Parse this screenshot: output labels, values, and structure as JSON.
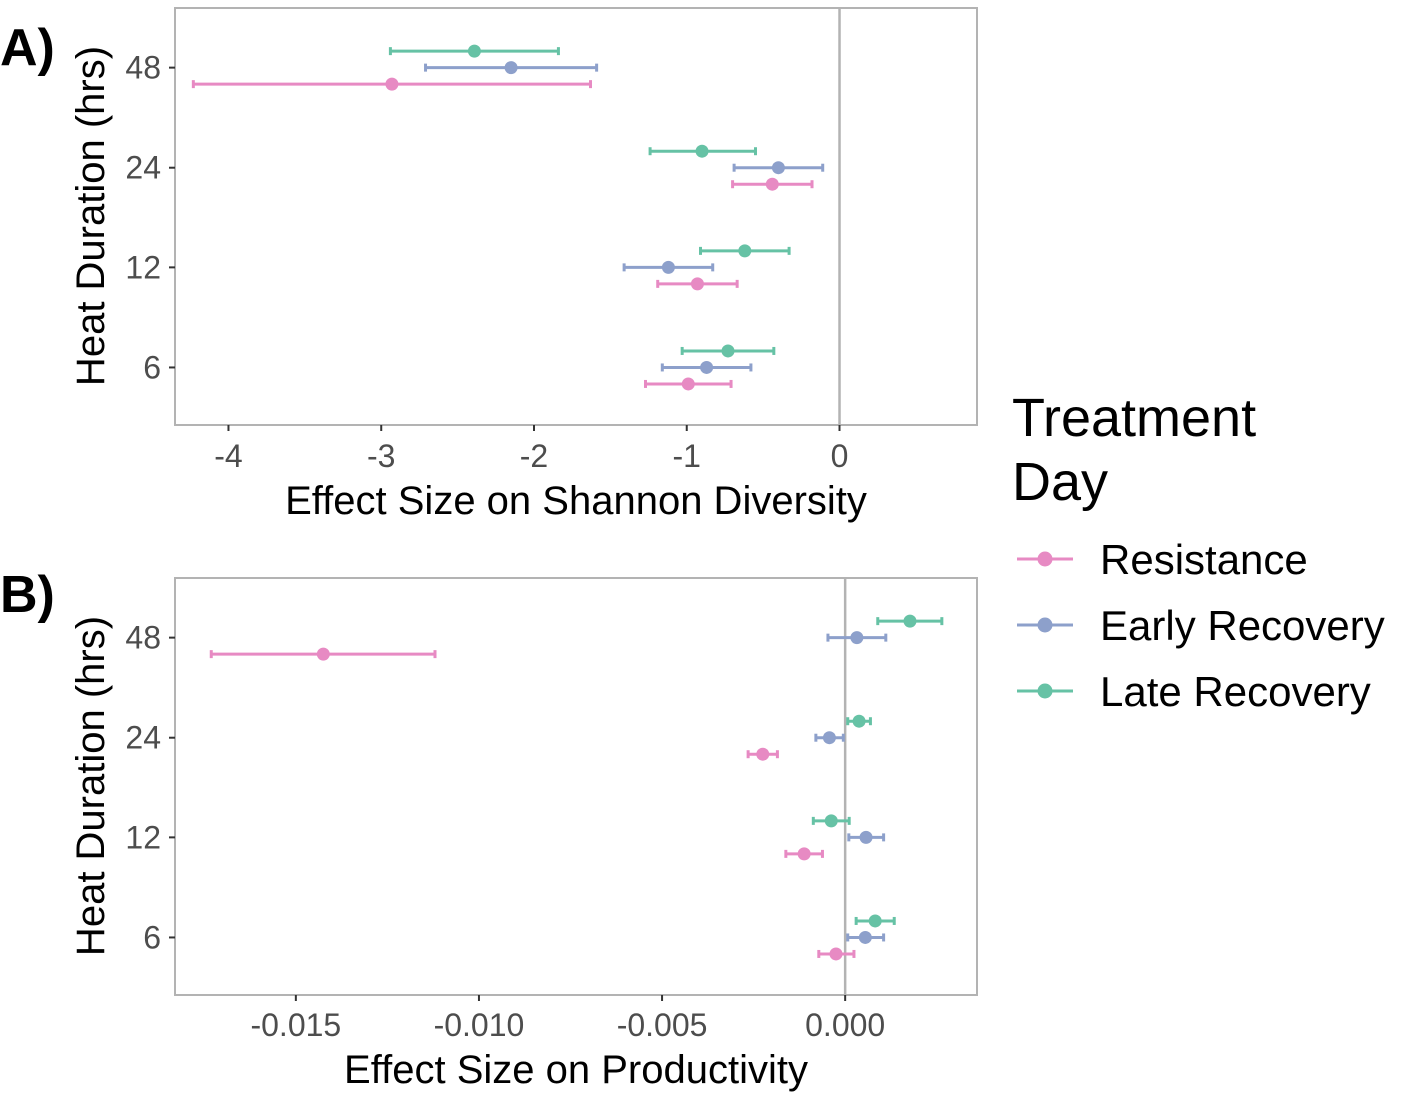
{
  "colors": {
    "Resistance": "#e78ac3",
    "Early Recovery": "#8da0cb",
    "Late Recovery": "#66c2a5"
  },
  "legend": {
    "title_line1": "Treatment",
    "title_line2": "Day",
    "items": [
      "Resistance",
      "Early Recovery",
      "Late Recovery"
    ]
  },
  "chart_data": [
    {
      "panel": "A)",
      "type": "scatter",
      "xlabel": "Effect Size on Shannon Diversity",
      "ylabel": "Heat Duration (hrs)",
      "xlim": [
        -4.35,
        0.9
      ],
      "x_ticks": [
        -4,
        -3,
        -2,
        -1,
        0
      ],
      "x_tick_labels": [
        "-4",
        "-3",
        "-2",
        "-1",
        "0"
      ],
      "categories": [
        "6",
        "12",
        "24",
        "48"
      ],
      "reference_line_x": 0,
      "series": [
        {
          "name": "Resistance",
          "points": [
            {
              "y": "6",
              "x": -0.99,
              "lo": -1.27,
              "hi": -0.71
            },
            {
              "y": "12",
              "x": -0.93,
              "lo": -1.19,
              "hi": -0.67
            },
            {
              "y": "24",
              "x": -0.44,
              "lo": -0.7,
              "hi": -0.18
            },
            {
              "y": "48",
              "x": -2.93,
              "lo": -4.23,
              "hi": -1.63
            }
          ]
        },
        {
          "name": "Early Recovery",
          "points": [
            {
              "y": "6",
              "x": -0.87,
              "lo": -1.16,
              "hi": -0.58
            },
            {
              "y": "12",
              "x": -1.12,
              "lo": -1.41,
              "hi": -0.83
            },
            {
              "y": "24",
              "x": -0.4,
              "lo": -0.69,
              "hi": -0.11
            },
            {
              "y": "48",
              "x": -2.15,
              "lo": -2.71,
              "hi": -1.59
            }
          ]
        },
        {
          "name": "Late Recovery",
          "points": [
            {
              "y": "6",
              "x": -0.73,
              "lo": -1.03,
              "hi": -0.43
            },
            {
              "y": "12",
              "x": -0.62,
              "lo": -0.91,
              "hi": -0.33
            },
            {
              "y": "24",
              "x": -0.9,
              "lo": -1.24,
              "hi": -0.55
            },
            {
              "y": "48",
              "x": -2.39,
              "lo": -2.94,
              "hi": -1.84
            }
          ]
        }
      ]
    },
    {
      "panel": "B)",
      "type": "scatter",
      "xlabel": "Effect Size on Productivity",
      "ylabel": "Heat Duration (hrs)",
      "xlim": [
        -0.0183,
        0.0036
      ],
      "x_ticks": [
        -0.015,
        -0.01,
        -0.005,
        0.0
      ],
      "x_tick_labels": [
        "-0.015",
        "-0.010",
        "-0.005",
        "0.000"
      ],
      "categories": [
        "6",
        "12",
        "24",
        "48"
      ],
      "reference_line_x": 0,
      "series": [
        {
          "name": "Resistance",
          "points": [
            {
              "y": "6",
              "x": -0.00025,
              "lo": -0.00072,
              "hi": 0.00024
            },
            {
              "y": "12",
              "x": -0.00112,
              "lo": -0.00162,
              "hi": -0.00062
            },
            {
              "y": "24",
              "x": -0.00225,
              "lo": -0.00265,
              "hi": -0.00185
            },
            {
              "y": "48",
              "x": -0.01425,
              "lo": -0.01731,
              "hi": -0.0112
            }
          ]
        },
        {
          "name": "Early Recovery",
          "points": [
            {
              "y": "6",
              "x": 0.00055,
              "lo": 7e-05,
              "hi": 0.00105
            },
            {
              "y": "12",
              "x": 0.00057,
              "lo": 0.0001,
              "hi": 0.00105
            },
            {
              "y": "24",
              "x": -0.00043,
              "lo": -0.0008,
              "hi": -5e-05
            },
            {
              "y": "48",
              "x": 0.00032,
              "lo": -0.00047,
              "hi": 0.00111
            }
          ]
        },
        {
          "name": "Late Recovery",
          "points": [
            {
              "y": "6",
              "x": 0.00082,
              "lo": 0.0003,
              "hi": 0.00134
            },
            {
              "y": "12",
              "x": -0.00038,
              "lo": -0.00087,
              "hi": 0.00011
            },
            {
              "y": "24",
              "x": 0.00038,
              "lo": 7e-05,
              "hi": 0.00069
            },
            {
              "y": "48",
              "x": 0.00177,
              "lo": 0.00089,
              "hi": 0.00264
            }
          ]
        }
      ]
    }
  ]
}
